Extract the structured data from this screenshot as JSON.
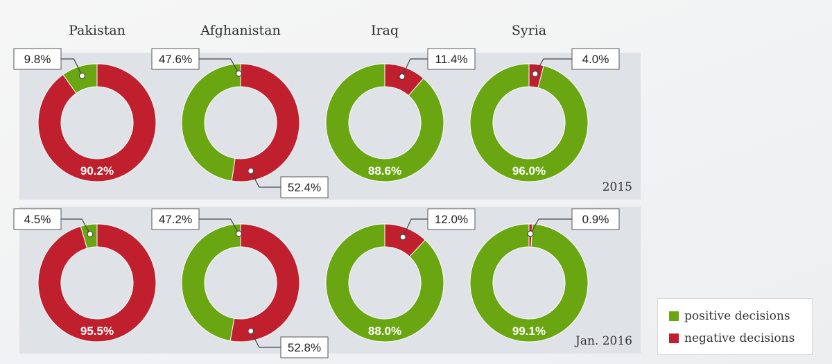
{
  "colors": {
    "positive": "#6aa612",
    "negative": "#c0202e",
    "band": "#dfe3e7",
    "callout_border": "#555555"
  },
  "countries": [
    "Pakistan",
    "Afghanistan",
    "Iraq",
    "Syria"
  ],
  "rows": [
    {
      "label": "2015"
    },
    {
      "label": "Jan. 2016"
    }
  ],
  "legend": {
    "positive": "positive decisions",
    "negative": "negative decisions"
  },
  "chart_data": [
    {
      "type": "pie",
      "title": "Pakistan",
      "period": "2015",
      "series": [
        {
          "name": "positive decisions",
          "value": 9.8,
          "label": "9.8%"
        },
        {
          "name": "negative decisions",
          "value": 90.2,
          "label": "90.2%"
        }
      ]
    },
    {
      "type": "pie",
      "title": "Afghanistan",
      "period": "2015",
      "series": [
        {
          "name": "positive decisions",
          "value": 47.6,
          "label": "47.6%"
        },
        {
          "name": "negative decisions",
          "value": 52.4,
          "label": "52.4%"
        }
      ]
    },
    {
      "type": "pie",
      "title": "Iraq",
      "period": "2015",
      "series": [
        {
          "name": "positive decisions",
          "value": 88.6,
          "label": "88.6%"
        },
        {
          "name": "negative decisions",
          "value": 11.4,
          "label": "11.4%"
        }
      ]
    },
    {
      "type": "pie",
      "title": "Syria",
      "period": "2015",
      "series": [
        {
          "name": "positive decisions",
          "value": 96.0,
          "label": "96.0%"
        },
        {
          "name": "negative decisions",
          "value": 4.0,
          "label": "4.0%"
        }
      ]
    },
    {
      "type": "pie",
      "title": "Pakistan",
      "period": "Jan. 2016",
      "series": [
        {
          "name": "positive decisions",
          "value": 4.5,
          "label": "4.5%"
        },
        {
          "name": "negative decisions",
          "value": 95.5,
          "label": "95.5%"
        }
      ]
    },
    {
      "type": "pie",
      "title": "Afghanistan",
      "period": "Jan. 2016",
      "series": [
        {
          "name": "positive decisions",
          "value": 47.2,
          "label": "47.2%"
        },
        {
          "name": "negative decisions",
          "value": 52.8,
          "label": "52.8%"
        }
      ]
    },
    {
      "type": "pie",
      "title": "Iraq",
      "period": "Jan. 2016",
      "series": [
        {
          "name": "positive decisions",
          "value": 88.0,
          "label": "88.0%"
        },
        {
          "name": "negative decisions",
          "value": 12.0,
          "label": "12.0%"
        }
      ]
    },
    {
      "type": "pie",
      "title": "Syria",
      "period": "Jan. 2016",
      "series": [
        {
          "name": "positive decisions",
          "value": 99.1,
          "label": "99.1%"
        },
        {
          "name": "negative decisions",
          "value": 0.9,
          "label": "0.9%"
        }
      ]
    }
  ]
}
